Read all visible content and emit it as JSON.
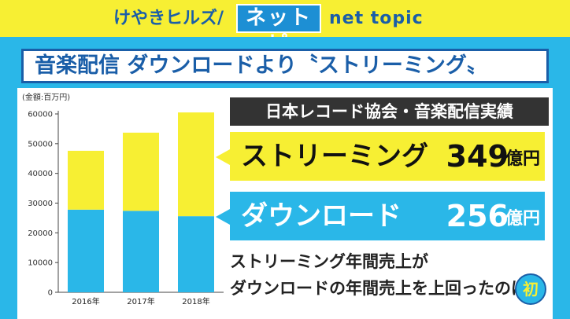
{
  "banner": {
    "brand": "けやきヒルズ/",
    "box_label": "ネットピ",
    "sub": "net topic"
  },
  "title": "音楽配信 ダウンロードより〝ストリーミング〟",
  "source": "日本レコード協会・音楽配信実績",
  "streaming": {
    "label": "ストリーミング",
    "value": "349",
    "unit": "億円"
  },
  "download": {
    "label": "ダウンロード",
    "value": "256",
    "unit": "億円"
  },
  "note_line1": "ストリーミング年間売上が",
  "note_line2": "ダウンロードの年間売上を上回ったのは",
  "badge": "初",
  "colors": {
    "streaming": "#f7ef33",
    "download": "#2ab7e8",
    "brand_blue": "#1a5ea8",
    "dark_box": "#333333"
  },
  "chart_data": {
    "type": "bar",
    "stacked": true,
    "unit_label": "(金額:百万円)",
    "categories": [
      "2016年",
      "2017年",
      "2018年"
    ],
    "series": [
      {
        "name": "ダウンロード",
        "color": "#2ab7e8",
        "values": [
          27800,
          27400,
          25600
        ]
      },
      {
        "name": "ストリーミング",
        "color": "#f7ef33",
        "values": [
          19800,
          26300,
          34900
        ]
      }
    ],
    "yticks": [
      0,
      10000,
      20000,
      30000,
      40000,
      50000,
      60000
    ],
    "ylim": [
      0,
      60000
    ],
    "grid": false
  }
}
